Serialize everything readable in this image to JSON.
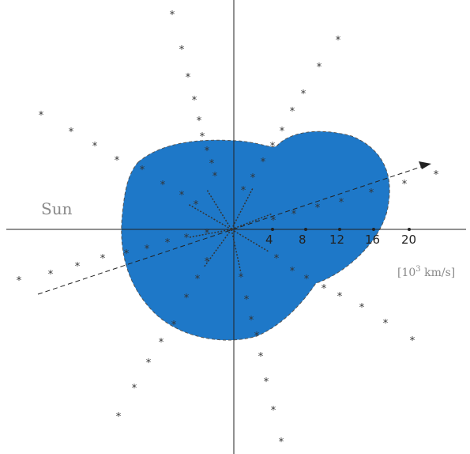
{
  "labels": {
    "sun": "Sun",
    "unit_base": "[10",
    "unit_exp": "3",
    "unit_rest": " km/s]"
  },
  "tick_labels": [
    "4",
    "8",
    "12",
    "16",
    "20"
  ],
  "contour_colors": {
    "outer": "#1e78c8",
    "mid_blue": "#3b9ae0",
    "light_blue": "#8ccaf0",
    "green": "#6ca832",
    "yellow": "#f5dc14",
    "red": "#ec6a3c"
  },
  "marker_glyph": "*"
}
